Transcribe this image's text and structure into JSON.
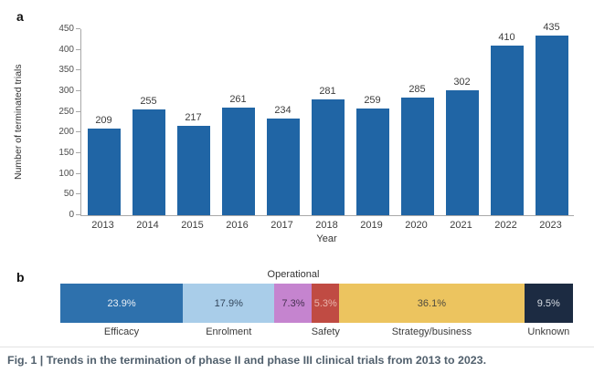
{
  "panel_a": {
    "label": "a"
  },
  "panel_b": {
    "label": "b"
  },
  "caption": "Fig. 1 | Trends in the termination of phase II and phase III clinical trials from 2013 to 2023.",
  "chart_data": [
    {
      "type": "bar",
      "panel": "a",
      "title": "",
      "xlabel": "Year",
      "ylabel": "Number of terminated trials",
      "categories": [
        "2013",
        "2014",
        "2015",
        "2016",
        "2017",
        "2018",
        "2019",
        "2020",
        "2021",
        "2022",
        "2023"
      ],
      "values": [
        209,
        255,
        217,
        261,
        234,
        281,
        259,
        285,
        302,
        410,
        435
      ],
      "ylim": [
        0,
        450
      ],
      "yticks": [
        0,
        50,
        100,
        150,
        200,
        250,
        300,
        350,
        400,
        450
      ],
      "bar_color": "#2065a5",
      "grid": false,
      "value_labels_shown": true,
      "legend": "none"
    },
    {
      "type": "stacked-bar-horizontal",
      "panel": "b",
      "units": "percent",
      "segments": [
        {
          "label": "Efficacy",
          "value_pct": 23.9,
          "display": "23.9%",
          "color": "#2e71ad",
          "text_color": "#e9eff6",
          "label_position": "below"
        },
        {
          "label": "Enrolment",
          "value_pct": 17.9,
          "display": "17.9%",
          "color": "#a9cde9",
          "text_color": "#33475c",
          "label_position": "below"
        },
        {
          "label": "Operational",
          "value_pct": 7.3,
          "display": "7.3%",
          "color": "#c584cf",
          "text_color": "#453050",
          "label_position": "above"
        },
        {
          "label": "Safety",
          "value_pct": 5.3,
          "display": "5.3%",
          "color": "#c04b43",
          "text_color": "#eab5ac",
          "label_position": "below"
        },
        {
          "label": "Strategy/business",
          "value_pct": 36.1,
          "display": "36.1%",
          "color": "#ecc45f",
          "text_color": "#4e4a3e",
          "label_position": "below"
        },
        {
          "label": "Unknown",
          "value_pct": 9.5,
          "display": "9.5%",
          "color": "#1c2b42",
          "text_color": "#d9dee4",
          "label_position": "below"
        }
      ]
    }
  ]
}
